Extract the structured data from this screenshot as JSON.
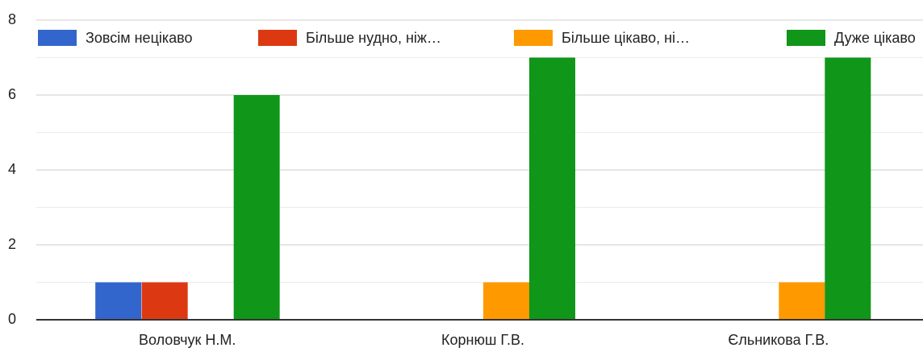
{
  "chart_data": {
    "type": "bar",
    "categories": [
      "Воловчук Н.М.",
      "Корнюш Г.В.",
      "Єльникова Г.В."
    ],
    "series": [
      {
        "name": "Зовсім нецікаво",
        "color": "#3366cc",
        "values": [
          1,
          0,
          0
        ]
      },
      {
        "name": "Більше нудно, ніж…",
        "color": "#dc3912",
        "values": [
          1,
          0,
          0
        ]
      },
      {
        "name": "Більше цікаво, ні…",
        "color": "#ff9900",
        "values": [
          0,
          1,
          1
        ]
      },
      {
        "name": "Дуже цікаво",
        "color": "#109618",
        "values": [
          6,
          7,
          7
        ]
      }
    ],
    "ylim": [
      0,
      8
    ],
    "yticks": [
      0,
      2,
      4,
      6,
      8
    ],
    "minor_yticks": [
      1,
      3,
      5,
      7
    ],
    "grid": true,
    "legend": "top"
  }
}
